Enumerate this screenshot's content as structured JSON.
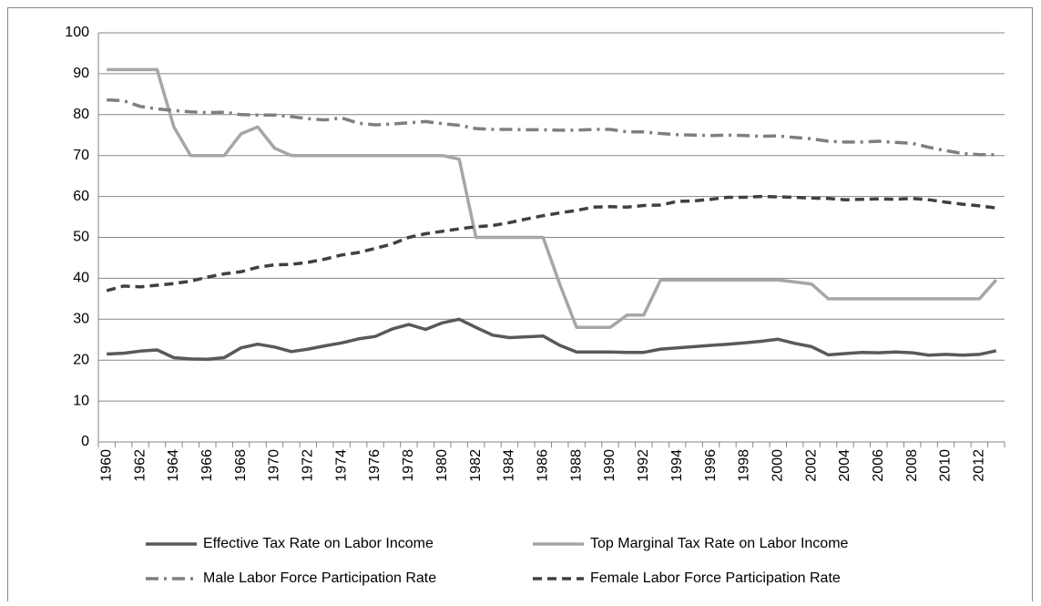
{
  "chart_data": {
    "type": "line",
    "categories": [
      "1960",
      null,
      "1962",
      null,
      "1964",
      null,
      "1966",
      null,
      "1968",
      null,
      "1970",
      null,
      "1972",
      null,
      "1974",
      null,
      "1976",
      null,
      "1978",
      null,
      "1980",
      null,
      "1982",
      null,
      "1984",
      null,
      "1986",
      null,
      "1988",
      null,
      "1990",
      null,
      "1992",
      null,
      "1994",
      null,
      "1996",
      null,
      "1998",
      null,
      "2000",
      null,
      "2002",
      null,
      "2004",
      null,
      "2006",
      null,
      "2008",
      null,
      "2010",
      null,
      "2012",
      null
    ],
    "ylim": [
      0,
      100
    ],
    "yticks": [
      0,
      10,
      20,
      30,
      40,
      50,
      60,
      70,
      80,
      90,
      100
    ],
    "grid": true,
    "legend": "bottom",
    "series": [
      {
        "name": "Effective Tax Rate on Labor Income",
        "color": "#595959",
        "dash": "solid",
        "values": [
          21.5,
          21.7,
          22.2,
          22.5,
          20.6,
          20.3,
          20.2,
          20.6,
          23.0,
          23.9,
          23.2,
          22.1,
          22.7,
          23.5,
          24.2,
          25.2,
          25.8,
          27.6,
          28.7,
          27.5,
          29.1,
          30.0,
          28.0,
          26.1,
          25.5,
          25.7,
          25.9,
          23.6,
          22.0,
          22.0,
          22.0,
          21.9,
          21.9,
          22.7,
          23.0,
          23.3,
          23.6,
          23.9,
          24.2,
          24.6,
          25.1,
          24.1,
          23.3,
          21.3,
          21.6,
          21.9,
          21.8,
          22.0,
          21.8,
          21.2,
          21.4,
          21.2,
          21.4,
          22.3
        ]
      },
      {
        "name": "Top Marginal Tax Rate on Labor Income",
        "color": "#a6a6a6",
        "dash": "solid",
        "values": [
          91,
          91,
          91,
          91,
          77,
          70,
          70,
          70,
          75.3,
          77,
          71.8,
          70,
          70,
          70,
          70,
          70,
          70,
          70,
          70,
          70,
          70,
          69.1,
          50,
          50,
          50,
          50,
          50,
          38.5,
          28,
          28,
          28,
          31,
          31,
          39.6,
          39.6,
          39.6,
          39.6,
          39.6,
          39.6,
          39.6,
          39.6,
          39.1,
          38.6,
          35,
          35,
          35,
          35,
          35,
          35,
          35,
          35,
          35,
          35,
          39.6
        ]
      },
      {
        "name": "Male Labor Force Participation Rate",
        "color": "#7f7f7f",
        "dash": "dash-dot",
        "values": [
          83.6,
          83.4,
          82.0,
          81.4,
          81.0,
          80.7,
          80.5,
          80.6,
          80.0,
          79.9,
          79.9,
          79.5,
          79.0,
          78.7,
          79.2,
          77.9,
          77.5,
          77.7,
          78.0,
          78.3,
          77.8,
          77.4,
          76.6,
          76.4,
          76.4,
          76.3,
          76.3,
          76.2,
          76.2,
          76.4,
          76.4,
          75.8,
          75.8,
          75.4,
          75.1,
          75.0,
          74.9,
          75.0,
          74.9,
          74.7,
          74.8,
          74.4,
          74.1,
          73.5,
          73.3,
          73.3,
          73.5,
          73.2,
          73.0,
          72.0,
          71.2,
          70.5,
          70.2,
          70.2
        ]
      },
      {
        "name": "Female Labor Force Participation Rate",
        "color": "#404040",
        "dash": "dash",
        "values": [
          37.0,
          38.1,
          37.9,
          38.3,
          38.7,
          39.3,
          40.3,
          41.1,
          41.6,
          42.7,
          43.3,
          43.4,
          43.9,
          44.7,
          45.7,
          46.3,
          47.3,
          48.4,
          50.0,
          50.9,
          51.5,
          52.1,
          52.6,
          52.9,
          53.6,
          54.5,
          55.3,
          56.0,
          56.6,
          57.4,
          57.5,
          57.4,
          57.8,
          57.9,
          58.8,
          58.9,
          59.3,
          59.8,
          59.8,
          60.0,
          59.9,
          59.8,
          59.6,
          59.5,
          59.2,
          59.3,
          59.4,
          59.3,
          59.5,
          59.2,
          58.6,
          58.1,
          57.7,
          57.2
        ]
      }
    ]
  }
}
